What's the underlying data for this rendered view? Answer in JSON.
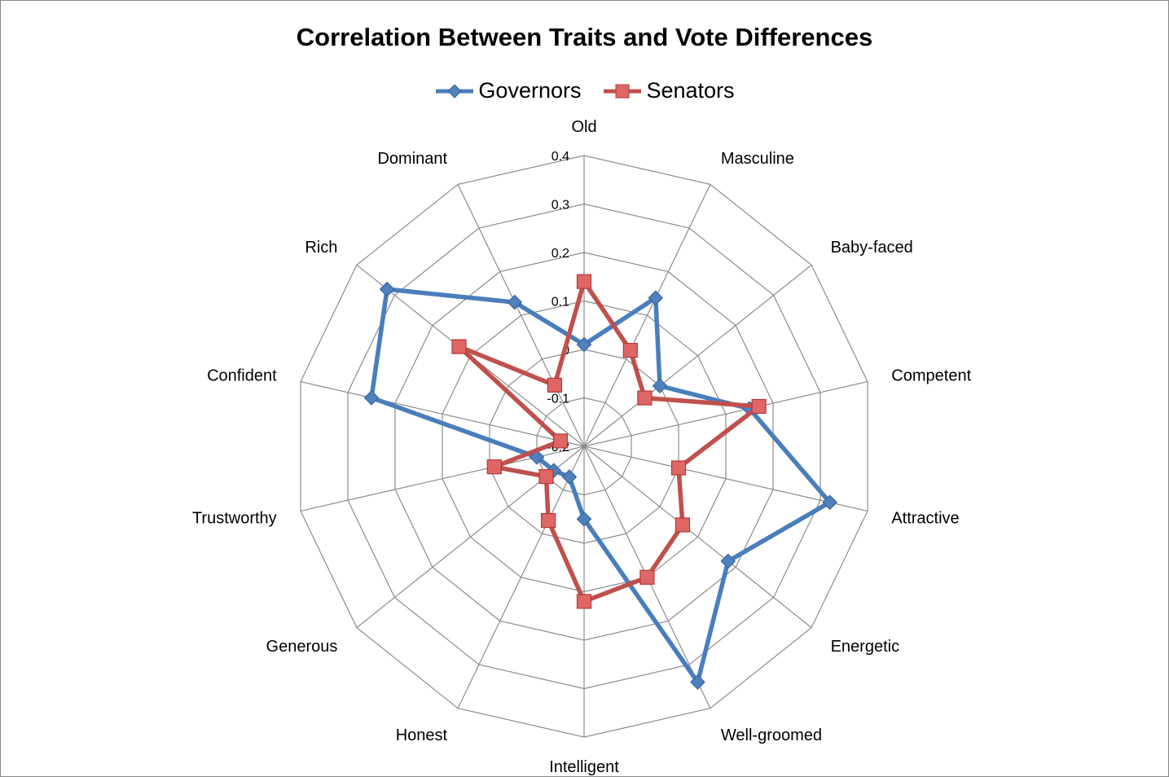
{
  "chart_data": {
    "type": "radar",
    "title": "Correlation Between Traits and Vote Differences",
    "categories": [
      "Old",
      "Masculine",
      "Baby-faced",
      "Competent",
      "Attractive",
      "Energetic",
      "Well-groomed",
      "Intelligent",
      "Honest",
      "Generous",
      "Trustworthy",
      "Confident",
      "Rich",
      "Dominant"
    ],
    "rlim": [
      -0.2,
      0.4
    ],
    "ticks": [
      -0.2,
      -0.1,
      0,
      0.1,
      0.2,
      0.3,
      0.4
    ],
    "tick_labels": [
      "-0.2",
      "-0.1",
      "0",
      "0.1",
      "0.2",
      "0.3",
      "0.4"
    ],
    "series": [
      {
        "name": "Governors",
        "color": "#4a7ebb",
        "marker": "diamond",
        "values": [
          0.01,
          0.14,
          0.0,
          0.15,
          0.32,
          0.18,
          0.34,
          -0.05,
          -0.13,
          -0.12,
          -0.1,
          0.25,
          0.32,
          0.13
        ]
      },
      {
        "name": "Senators",
        "color": "#c0504d",
        "marker": "square",
        "values": [
          0.14,
          0.02,
          -0.04,
          0.17,
          0.0,
          0.06,
          0.1,
          0.12,
          -0.03,
          -0.1,
          -0.01,
          -0.15,
          0.13,
          -0.06
        ]
      }
    ],
    "grid": true,
    "legend_position": "top"
  }
}
